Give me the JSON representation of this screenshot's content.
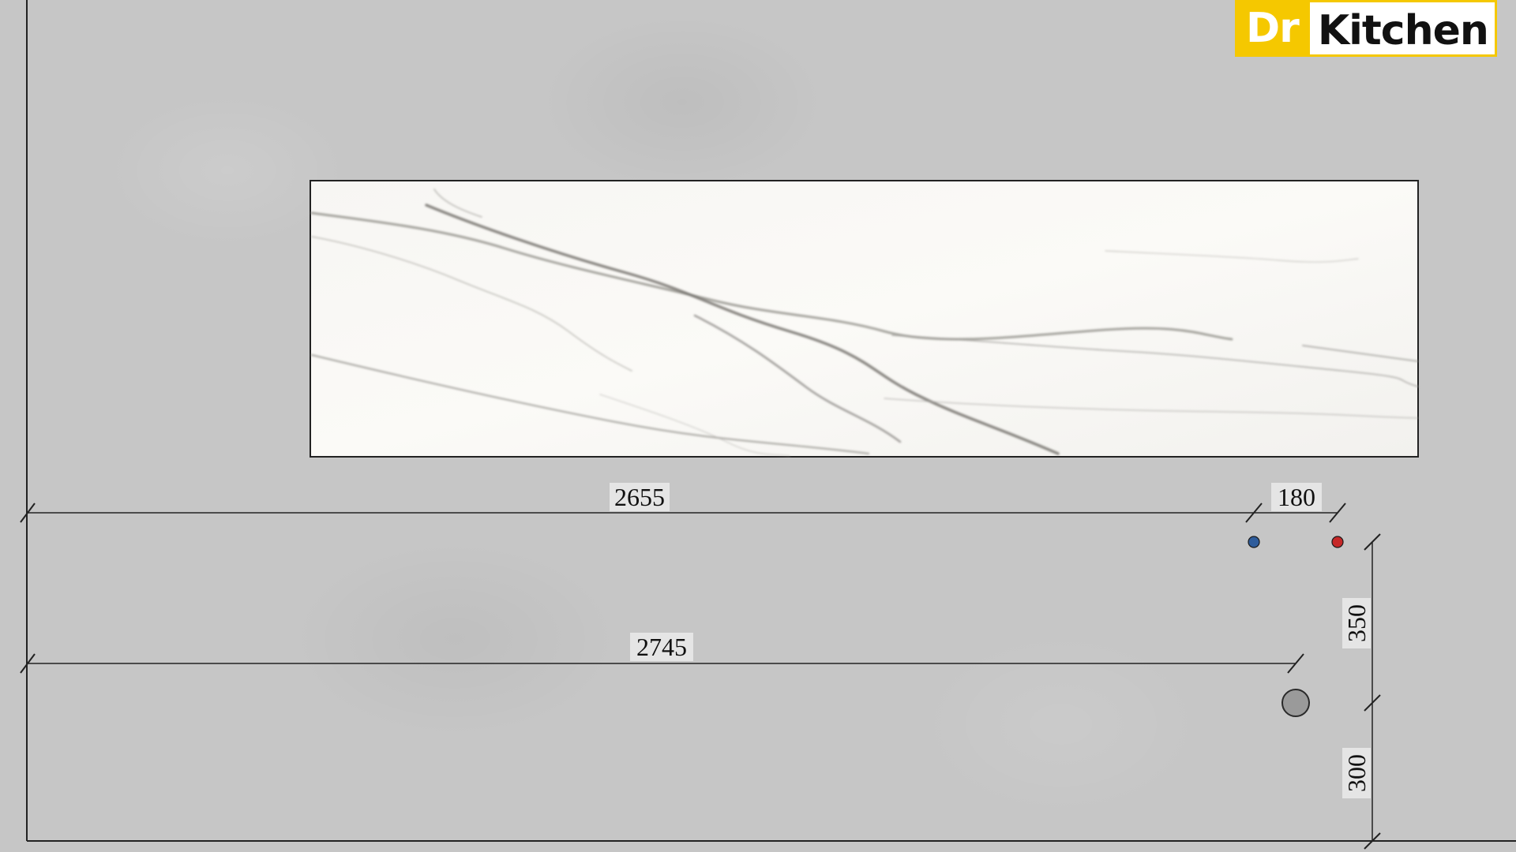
{
  "logo": {
    "part1": "Dr",
    "part2": "Kitchen",
    "colors": {
      "accent": "#f5c800",
      "text_dark": "#111111",
      "text_light": "#ffffff"
    }
  },
  "dimensions": {
    "cold_water_offset": "2655",
    "hot_cold_spacing": "180",
    "drain_offset": "2745",
    "outlet_height_above_drain": "350",
    "drain_height": "300"
  },
  "markers": {
    "cold_water": {
      "color": "#2f5d9c"
    },
    "hot_water": {
      "color": "#c62828"
    },
    "drain": {
      "color": "#9a9a9a"
    }
  },
  "materials": {
    "wall": "concrete-grey",
    "backsplash": "white-marble"
  }
}
